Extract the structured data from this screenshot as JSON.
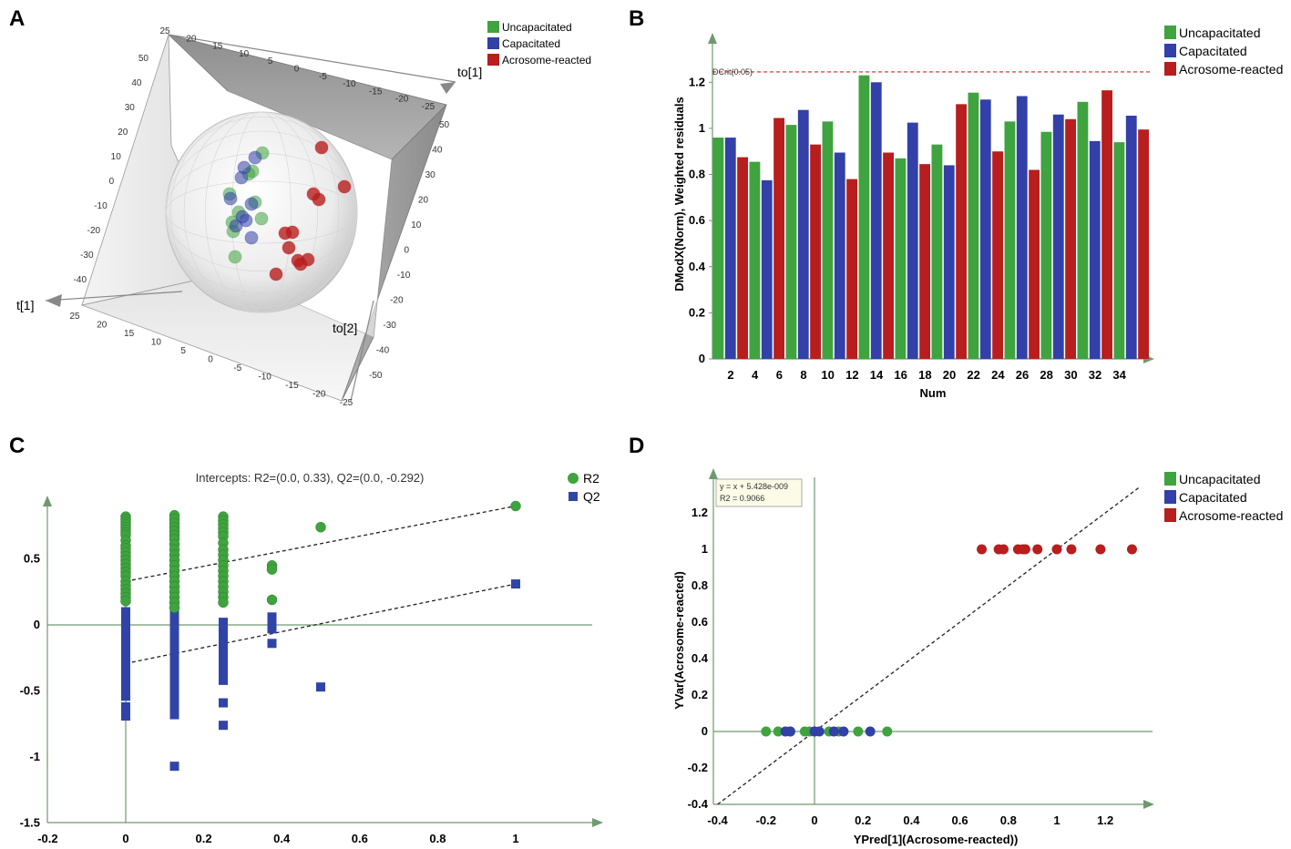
{
  "colors": {
    "uncapacitated": "#3fa33f",
    "capacitated": "#3240a8",
    "acrosome": "#b81e1e",
    "axis": "#6f9a6f",
    "r2": "#3fa33f",
    "q2": "#3044a8",
    "dcrit": "#e02020"
  },
  "panels": {
    "a": "A",
    "b": "B",
    "c": "C",
    "d": "D"
  },
  "legend_groups": [
    "Uncapacitated",
    "Capacitated",
    "Acrosome-reacted"
  ],
  "chart_data": [
    {
      "id": "A",
      "type": "scatter",
      "subtype": "3d-scatter",
      "axis_labels": {
        "x": "t[1]",
        "y": "to[1]",
        "z": "to[2]"
      },
      "ticks_left": [
        "50",
        "40",
        "30",
        "20",
        "10",
        "0",
        "-10",
        "-20",
        "-30",
        "-40"
      ],
      "ticks_top": [
        "25",
        "20",
        "15",
        "10",
        "5",
        "0",
        "-5",
        "-10",
        "-15",
        "-20",
        "-25"
      ],
      "ticks_right": [
        "50",
        "40",
        "30",
        "20",
        "10",
        "0",
        "-10",
        "-20",
        "-30",
        "-40",
        "-50"
      ],
      "ticks_bottom": [
        "25",
        "20",
        "15",
        "10",
        "5",
        "0",
        "-5",
        "-10",
        "-15",
        "-20",
        "-25"
      ],
      "legend": [
        "Uncapacitated",
        "Capacitated",
        "Acrosome-reacted"
      ],
      "points": [
        {
          "g": 0,
          "u": 288,
          "v": 168
        },
        {
          "g": 0,
          "u": 277,
          "v": 188
        },
        {
          "g": 0,
          "u": 273,
          "v": 191
        },
        {
          "g": 0,
          "u": 262,
          "v": 233
        },
        {
          "g": 0,
          "u": 280,
          "v": 222
        },
        {
          "g": 0,
          "u": 287,
          "v": 240
        },
        {
          "g": 0,
          "u": 255,
          "v": 244
        },
        {
          "g": 0,
          "u": 256,
          "v": 254
        },
        {
          "g": 0,
          "u": 258,
          "v": 282
        },
        {
          "g": 0,
          "u": 252,
          "v": 213
        },
        {
          "g": 1,
          "u": 280,
          "v": 173
        },
        {
          "g": 1,
          "u": 268,
          "v": 184
        },
        {
          "g": 1,
          "u": 265,
          "v": 195
        },
        {
          "g": 1,
          "u": 253,
          "v": 218
        },
        {
          "g": 1,
          "u": 270,
          "v": 242
        },
        {
          "g": 1,
          "u": 259,
          "v": 248
        },
        {
          "g": 1,
          "u": 276,
          "v": 261
        },
        {
          "g": 1,
          "u": 266,
          "v": 238
        },
        {
          "g": 1,
          "u": 276,
          "v": 224
        },
        {
          "g": 2,
          "u": 353,
          "v": 162
        },
        {
          "g": 2,
          "u": 378,
          "v": 205
        },
        {
          "g": 2,
          "u": 344,
          "v": 213
        },
        {
          "g": 2,
          "u": 350,
          "v": 219
        },
        {
          "g": 2,
          "u": 313,
          "v": 256
        },
        {
          "g": 2,
          "u": 321,
          "v": 255
        },
        {
          "g": 2,
          "u": 317,
          "v": 272
        },
        {
          "g": 2,
          "u": 327,
          "v": 286
        },
        {
          "g": 2,
          "u": 338,
          "v": 285
        },
        {
          "g": 2,
          "u": 330,
          "v": 290
        },
        {
          "g": 2,
          "u": 303,
          "v": 301
        }
      ]
    },
    {
      "id": "B",
      "type": "bar",
      "xlabel": "Num",
      "ylabel": "DModX(Norm), Weighted residuals",
      "ylim": [
        0,
        1.3
      ],
      "yticks": [
        "0",
        "0.2",
        "0.4",
        "0.6",
        "0.8",
        "1",
        "1.2"
      ],
      "xtick_labels": [
        "2",
        "4",
        "6",
        "8",
        "10",
        "12",
        "14",
        "16",
        "18",
        "20",
        "22",
        "24",
        "26",
        "28",
        "30",
        "32",
        "34"
      ],
      "dcrit_label": "DCrit(0.05)",
      "dcrit": 1.245,
      "legend": [
        "Uncapacitated",
        "Capacitated",
        "Acrosome-reacted"
      ],
      "values": [
        0.96,
        0.96,
        0.875,
        0.855,
        0.775,
        1.045,
        1.015,
        1.08,
        0.93,
        1.03,
        0.895,
        0.78,
        1.23,
        1.2,
        0.895,
        0.87,
        1.025,
        0.845,
        0.93,
        0.84,
        1.105,
        1.155,
        1.125,
        0.9,
        1.03,
        1.14,
        0.82,
        0.985,
        1.06,
        1.04,
        1.115,
        0.945,
        1.165,
        0.94,
        1.055,
        0.995
      ],
      "groups": [
        0,
        1,
        2,
        0,
        1,
        2,
        0,
        1,
        2,
        0,
        1,
        2,
        0,
        1,
        2,
        0,
        1,
        2,
        0,
        1,
        2,
        0,
        1,
        2,
        0,
        1,
        2,
        0,
        1,
        2,
        0,
        1,
        2,
        0,
        1,
        2
      ]
    },
    {
      "id": "C",
      "type": "scatter",
      "title": "Intercepts: R2=(0.0, 0.33), Q2=(0.0, -0.292)",
      "xlim": [
        -0.2,
        1.2
      ],
      "ylim": [
        -1.5,
        0.95
      ],
      "xticks": [
        "-0.2",
        "0",
        "0.2",
        "0.4",
        "0.6",
        "0.8",
        "1"
      ],
      "yticks": [
        "-1.5",
        "-1",
        "-0.5",
        "0",
        "0.5"
      ],
      "series": [
        {
          "name": "R2",
          "marker": "circle",
          "points": [
            [
              0,
              0.82
            ],
            [
              0,
              0.8
            ],
            [
              0,
              0.78
            ],
            [
              0,
              0.76
            ],
            [
              0,
              0.74
            ],
            [
              0,
              0.72
            ],
            [
              0,
              0.7
            ],
            [
              0,
              0.68
            ],
            [
              0,
              0.64
            ],
            [
              0,
              0.6
            ],
            [
              0,
              0.58
            ],
            [
              0,
              0.55
            ],
            [
              0,
              0.52
            ],
            [
              0,
              0.49
            ],
            [
              0,
              0.46
            ],
            [
              0,
              0.43
            ],
            [
              0,
              0.4
            ],
            [
              0,
              0.37
            ],
            [
              0,
              0.33
            ],
            [
              0,
              0.3
            ],
            [
              0,
              0.27
            ],
            [
              0,
              0.24
            ],
            [
              0,
              0.21
            ],
            [
              0,
              0.18
            ],
            [
              0.125,
              0.83
            ],
            [
              0.125,
              0.8
            ],
            [
              0.125,
              0.77
            ],
            [
              0.125,
              0.74
            ],
            [
              0.125,
              0.71
            ],
            [
              0.125,
              0.68
            ],
            [
              0.125,
              0.65
            ],
            [
              0.125,
              0.61
            ],
            [
              0.125,
              0.57
            ],
            [
              0.125,
              0.53
            ],
            [
              0.125,
              0.49
            ],
            [
              0.125,
              0.45
            ],
            [
              0.125,
              0.41
            ],
            [
              0.125,
              0.37
            ],
            [
              0.125,
              0.33
            ],
            [
              0.125,
              0.29
            ],
            [
              0.125,
              0.25
            ],
            [
              0.125,
              0.21
            ],
            [
              0.125,
              0.17
            ],
            [
              0.125,
              0.13
            ],
            [
              0.25,
              0.82
            ],
            [
              0.25,
              0.79
            ],
            [
              0.25,
              0.76
            ],
            [
              0.25,
              0.73
            ],
            [
              0.25,
              0.7
            ],
            [
              0.25,
              0.67
            ],
            [
              0.25,
              0.62
            ],
            [
              0.25,
              0.57
            ],
            [
              0.25,
              0.53
            ],
            [
              0.25,
              0.49
            ],
            [
              0.25,
              0.45
            ],
            [
              0.25,
              0.41
            ],
            [
              0.25,
              0.37
            ],
            [
              0.25,
              0.33
            ],
            [
              0.25,
              0.29
            ],
            [
              0.25,
              0.25
            ],
            [
              0.25,
              0.21
            ],
            [
              0.25,
              0.17
            ],
            [
              0.375,
              0.45
            ],
            [
              0.375,
              0.42
            ],
            [
              0.375,
              0.19
            ],
            [
              0.5,
              0.74
            ],
            [
              1.0,
              0.9
            ]
          ]
        },
        {
          "name": "Q2",
          "marker": "square",
          "points": [
            [
              0,
              0.1
            ],
            [
              0,
              0.06
            ],
            [
              0,
              0.02
            ],
            [
              0,
              -0.02
            ],
            [
              0,
              -0.06
            ],
            [
              0,
              -0.1
            ],
            [
              0,
              -0.14
            ],
            [
              0,
              -0.18
            ],
            [
              0,
              -0.22
            ],
            [
              0,
              -0.26
            ],
            [
              0,
              -0.3
            ],
            [
              0,
              -0.34
            ],
            [
              0,
              -0.38
            ],
            [
              0,
              -0.42
            ],
            [
              0,
              -0.46
            ],
            [
              0,
              -0.5
            ],
            [
              0,
              -0.54
            ],
            [
              0,
              -0.62
            ],
            [
              0,
              -0.66
            ],
            [
              0,
              -0.69
            ],
            [
              0.125,
              0.26
            ],
            [
              0.125,
              0.18
            ],
            [
              0.125,
              0.12
            ],
            [
              0.125,
              0.08
            ],
            [
              0.125,
              0.04
            ],
            [
              0.125,
              0.0
            ],
            [
              0.125,
              -0.04
            ],
            [
              0.125,
              -0.08
            ],
            [
              0.125,
              -0.12
            ],
            [
              0.125,
              -0.16
            ],
            [
              0.125,
              -0.2
            ],
            [
              0.125,
              -0.24
            ],
            [
              0.125,
              -0.28
            ],
            [
              0.125,
              -0.32
            ],
            [
              0.125,
              -0.36
            ],
            [
              0.125,
              -0.4
            ],
            [
              0.125,
              -0.44
            ],
            [
              0.125,
              -0.48
            ],
            [
              0.125,
              -0.52
            ],
            [
              0.125,
              -0.56
            ],
            [
              0.125,
              -0.6
            ],
            [
              0.125,
              -0.64
            ],
            [
              0.125,
              -0.68
            ],
            [
              0.125,
              -1.07
            ],
            [
              0.25,
              0.02
            ],
            [
              0.25,
              -0.02
            ],
            [
              0.25,
              -0.06
            ],
            [
              0.25,
              -0.1
            ],
            [
              0.25,
              -0.14
            ],
            [
              0.25,
              -0.18
            ],
            [
              0.25,
              -0.22
            ],
            [
              0.25,
              -0.26
            ],
            [
              0.25,
              -0.3
            ],
            [
              0.25,
              -0.34
            ],
            [
              0.25,
              -0.38
            ],
            [
              0.25,
              -0.42
            ],
            [
              0.25,
              -0.59
            ],
            [
              0.25,
              -0.76
            ],
            [
              0.375,
              0.06
            ],
            [
              0.375,
              0.01
            ],
            [
              0.375,
              -0.03
            ],
            [
              0.375,
              -0.14
            ],
            [
              0.5,
              -0.47
            ],
            [
              1.0,
              0.31
            ]
          ]
        }
      ],
      "reference_lines": [
        {
          "name": "R2",
          "from": [
            0,
            0.33
          ],
          "to": [
            1.0,
            0.9
          ]
        },
        {
          "name": "Q2",
          "from": [
            0,
            -0.292
          ],
          "to": [
            1.0,
            0.31
          ]
        }
      ],
      "legend": [
        "R2",
        "Q2"
      ]
    },
    {
      "id": "D",
      "type": "scatter",
      "xlabel": "YPred[1](Acrosome-reacted))",
      "ylabel": "YVar(Acrosome-reacted)",
      "xlim": [
        -0.4,
        1.4
      ],
      "ylim": [
        -0.4,
        1.28
      ],
      "xticks": [
        "-0.4",
        "-0.2",
        "0",
        "0.2",
        "0.4",
        "0.6",
        "0.8",
        "1",
        "1.2"
      ],
      "yticks": [
        "-0.4",
        "-0.2",
        "0",
        "0.2",
        "0.4",
        "0.6",
        "0.8",
        "1",
        "1.2"
      ],
      "annotation": [
        "y = x + 5.428e-009",
        "R2 = 0.9066"
      ],
      "fit_line": {
        "slope": 1,
        "intercept": 0
      },
      "legend": [
        "Uncapacitated",
        "Capacitated",
        "Acrosome-reacted"
      ],
      "points": [
        {
          "g": 0,
          "x": -0.2,
          "y": 0
        },
        {
          "g": 0,
          "x": -0.15,
          "y": 0
        },
        {
          "g": 0,
          "x": -0.1,
          "y": 0
        },
        {
          "g": 0,
          "x": -0.04,
          "y": 0
        },
        {
          "g": 0,
          "x": -0.02,
          "y": 0
        },
        {
          "g": 0,
          "x": 0.06,
          "y": 0
        },
        {
          "g": 0,
          "x": 0.1,
          "y": 0
        },
        {
          "g": 0,
          "x": 0.18,
          "y": 0
        },
        {
          "g": 0,
          "x": 0.3,
          "y": 0
        },
        {
          "g": 0,
          "x": 0.0,
          "y": 0
        },
        {
          "g": 1,
          "x": -0.12,
          "y": 0
        },
        {
          "g": 1,
          "x": -0.1,
          "y": 0
        },
        {
          "g": 1,
          "x": 0.0,
          "y": 0
        },
        {
          "g": 1,
          "x": 0.02,
          "y": 0
        },
        {
          "g": 1,
          "x": 0.08,
          "y": 0
        },
        {
          "g": 1,
          "x": 0.12,
          "y": 0
        },
        {
          "g": 1,
          "x": 0.23,
          "y": 0
        },
        {
          "g": 2,
          "x": 0.69,
          "y": 1
        },
        {
          "g": 2,
          "x": 0.76,
          "y": 1
        },
        {
          "g": 2,
          "x": 0.78,
          "y": 1
        },
        {
          "g": 2,
          "x": 0.84,
          "y": 1
        },
        {
          "g": 2,
          "x": 0.86,
          "y": 1
        },
        {
          "g": 2,
          "x": 0.87,
          "y": 1
        },
        {
          "g": 2,
          "x": 0.92,
          "y": 1
        },
        {
          "g": 2,
          "x": 1.0,
          "y": 1
        },
        {
          "g": 2,
          "x": 1.06,
          "y": 1
        },
        {
          "g": 2,
          "x": 1.18,
          "y": 1
        },
        {
          "g": 2,
          "x": 1.31,
          "y": 1
        }
      ]
    }
  ]
}
